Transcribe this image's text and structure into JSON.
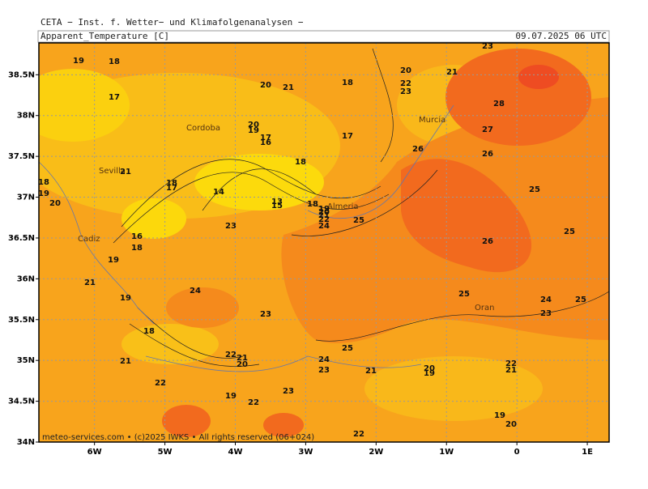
{
  "header": {
    "source": "CETA − Inst. f. Wetter− und Klimafolgenanalysen −",
    "variable": "Apparent_Temperature [C]",
    "datetime": "09.07.2025 06 UTC"
  },
  "map": {
    "xlim": [
      -6.79,
      1.31
    ],
    "ylim": [
      34,
      38.89
    ],
    "xticks": [
      {
        "value": -6,
        "label": "6W"
      },
      {
        "value": -5,
        "label": "5W"
      },
      {
        "value": -4,
        "label": "4W"
      },
      {
        "value": -3,
        "label": "3W"
      },
      {
        "value": -2,
        "label": "2W"
      },
      {
        "value": -1,
        "label": "1W"
      },
      0,
      {
        "value": 1,
        "label": "1E"
      }
    ],
    "yticks": [
      {
        "value": 34,
        "label": "34N"
      },
      {
        "value": 34.5,
        "label": "34.5N"
      },
      {
        "value": 35,
        "label": "35N"
      },
      {
        "value": 35.5,
        "label": "35.5N"
      },
      {
        "value": 36,
        "label": "36N"
      },
      {
        "value": 36.5,
        "label": "36.5N"
      },
      {
        "value": 37,
        "label": "37N"
      },
      {
        "value": 37.5,
        "label": "37.5N"
      },
      {
        "value": 38,
        "label": "38N"
      },
      {
        "value": 38.5,
        "label": "38.5N"
      }
    ],
    "cities": [
      "Cordoba",
      "Sevilla",
      "Cadiz",
      "Almeria",
      "Murcia",
      "Oran"
    ],
    "contour_labels": [
      19,
      18,
      17,
      20,
      21,
      18,
      20,
      21,
      22,
      23,
      23,
      28,
      27,
      26,
      26,
      20,
      19,
      17,
      16,
      17,
      18,
      21,
      18,
      19,
      20,
      18,
      17,
      14,
      13,
      15,
      18,
      19,
      20,
      21,
      22,
      24,
      25,
      23,
      25,
      25,
      26,
      16,
      18,
      19,
      21,
      19,
      24,
      23,
      25,
      24,
      23,
      25,
      18,
      22,
      21,
      20,
      24,
      25,
      23,
      21,
      20,
      19,
      22,
      21,
      21,
      22,
      19,
      22,
      23,
      19,
      20,
      22
    ]
  },
  "footer": "meteo-services.com • (c)2025 IWKS • All rights reserved (06+024)"
}
